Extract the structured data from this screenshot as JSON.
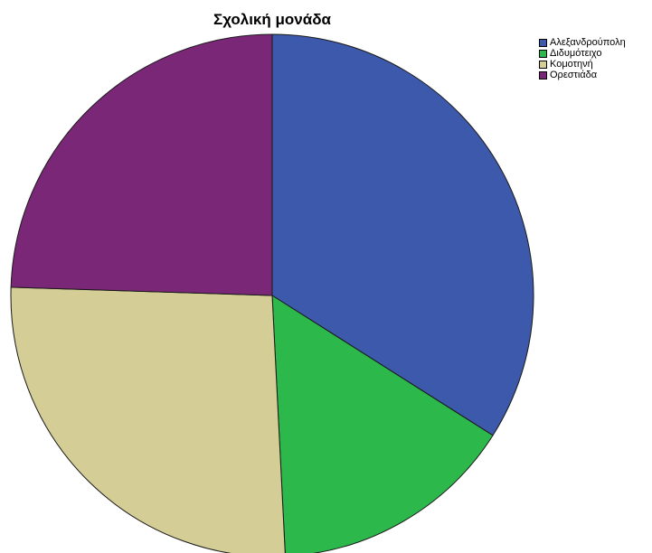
{
  "chart_data": {
    "type": "pie",
    "title": "Σχολική μονάδα",
    "categories": [
      "Αλεξανδρούπολη",
      "Διδυμότειχο",
      "Κομοτηνή",
      "Ορεστιάδα"
    ],
    "values": [
      34.0,
      15.2,
      26.3,
      24.5
    ],
    "colors": [
      "#3d59ab",
      "#2db84b",
      "#d4cd95",
      "#7b2777"
    ],
    "legend": "top-right"
  }
}
